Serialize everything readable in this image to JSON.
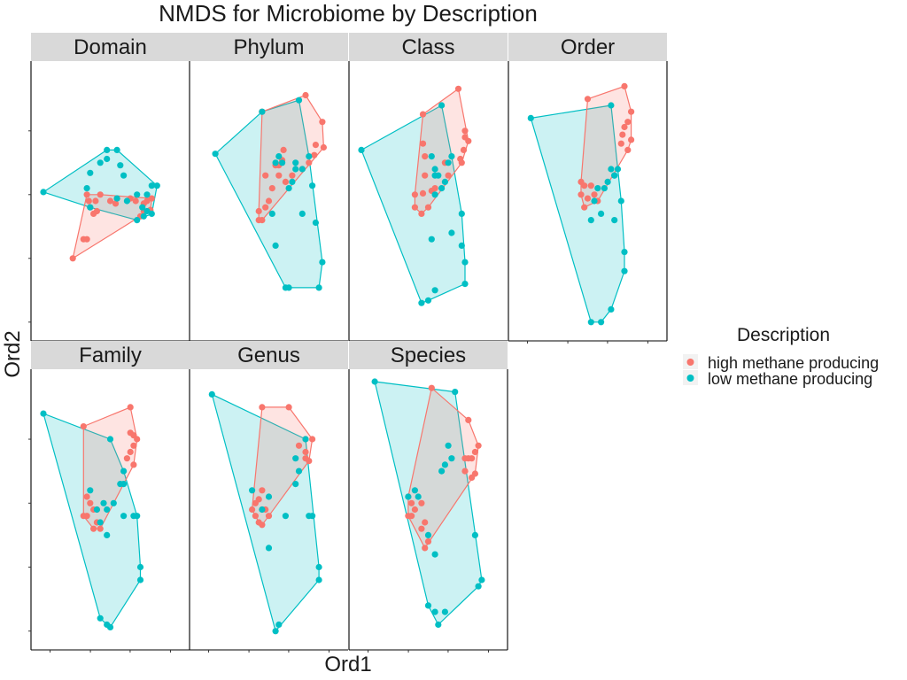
{
  "chart_data": {
    "type": "scatter",
    "title": "NMDS for Microbiome by Description",
    "xlabel": "Ord1",
    "ylabel": "Ord2",
    "legend": {
      "title": "Description",
      "position": "right",
      "entries": [
        {
          "label": "high methane producing",
          "color": "#F8766D"
        },
        {
          "label": "low methane producing",
          "color": "#00BFC4"
        }
      ]
    },
    "colors": {
      "high": "#F8766D",
      "low": "#00BFC4"
    },
    "xlim": [
      -1,
      1
    ],
    "ylim": [
      -1,
      1
    ],
    "facets": [
      {
        "name": "Domain",
        "high": [
          [
            -0.56,
            -0.45
          ],
          [
            -0.35,
            -0.3
          ],
          [
            -0.4,
            -0.3
          ],
          [
            -0.25,
            -0.1
          ],
          [
            -0.2,
            -0.08
          ],
          [
            -0.15,
            0.05
          ],
          [
            -0.35,
            0.05
          ],
          [
            -0.32,
            0.0
          ],
          [
            -0.22,
            0.0
          ],
          [
            -0.3,
            -0.05
          ],
          [
            0.0,
            0.0
          ],
          [
            0.1,
            0.02
          ],
          [
            0.3,
            0.02
          ],
          [
            0.38,
            0.0
          ],
          [
            0.5,
            -0.02
          ],
          [
            0.55,
            0.0
          ],
          [
            0.62,
            0.02
          ],
          [
            0.6,
            -0.07
          ],
          [
            0.5,
            -0.08
          ],
          [
            0.45,
            -0.12
          ],
          [
            0.08,
            -0.02
          ]
        ],
        "low": [
          [
            -1.0,
            0.07
          ],
          [
            -0.05,
            0.4
          ],
          [
            -0.05,
            0.33
          ],
          [
            -0.15,
            0.3
          ],
          [
            -0.3,
            0.22
          ],
          [
            -0.35,
            0.1
          ],
          [
            0.1,
            0.4
          ],
          [
            0.15,
            0.28
          ],
          [
            0.2,
            0.2
          ],
          [
            0.1,
            0.02
          ],
          [
            0.25,
            0.0
          ],
          [
            0.4,
            0.05
          ],
          [
            0.55,
            0.05
          ],
          [
            0.48,
            -0.05
          ],
          [
            0.5,
            -0.12
          ],
          [
            0.62,
            0.12
          ],
          [
            0.7,
            0.12
          ],
          [
            0.62,
            -0.1
          ],
          [
            0.4,
            -0.15
          ],
          [
            0.55,
            -0.08
          ],
          [
            -0.3,
            -0.05
          ]
        ]
      },
      {
        "name": "Phylum",
        "high": [
          [
            0.55,
            0.83
          ],
          [
            0.8,
            0.62
          ],
          [
            0.82,
            0.42
          ],
          [
            0.7,
            0.44
          ],
          [
            0.68,
            0.36
          ],
          [
            0.22,
            0.4
          ],
          [
            0.2,
            0.32
          ],
          [
            0.15,
            0.28
          ],
          [
            0.1,
            0.28
          ],
          [
            -0.05,
            0.2
          ],
          [
            0.05,
            0.1
          ],
          [
            0.0,
            0.0
          ],
          [
            -0.05,
            -0.05
          ],
          [
            -0.15,
            -0.08
          ],
          [
            -0.15,
            -0.15
          ],
          [
            -0.1,
            -0.15
          ],
          [
            0.5,
            0.25
          ],
          [
            0.6,
            0.3
          ],
          [
            0.35,
            0.2
          ],
          [
            0.25,
            0.15
          ],
          [
            0.15,
            0.2
          ],
          [
            -0.1,
            0.7
          ]
        ],
        "low": [
          [
            -0.8,
            0.37
          ],
          [
            -0.1,
            0.7
          ],
          [
            0.45,
            0.79
          ],
          [
            0.6,
            0.35
          ],
          [
            0.5,
            0.25
          ],
          [
            0.4,
            0.3
          ],
          [
            0.35,
            0.15
          ],
          [
            0.3,
            0.1
          ],
          [
            0.2,
            0.3
          ],
          [
            0.15,
            0.35
          ],
          [
            0.1,
            0.3
          ],
          [
            0.65,
            0.12
          ],
          [
            0.5,
            -0.1
          ],
          [
            0.7,
            -0.17
          ],
          [
            0.8,
            -0.48
          ],
          [
            0.75,
            -0.68
          ],
          [
            0.25,
            -0.68
          ],
          [
            0.3,
            -0.68
          ],
          [
            0.1,
            -0.35
          ],
          [
            0.05,
            -0.1
          ],
          [
            0.4,
            0.25
          ]
        ]
      },
      {
        "name": "Class",
        "high": [
          [
            0.45,
            0.88
          ],
          [
            0.55,
            0.55
          ],
          [
            0.6,
            0.47
          ],
          [
            0.55,
            0.5
          ],
          [
            0.53,
            0.4
          ],
          [
            0.5,
            0.3
          ],
          [
            0.48,
            0.33
          ],
          [
            -0.08,
            0.68
          ],
          [
            -0.08,
            0.45
          ],
          [
            -0.05,
            0.35
          ],
          [
            -0.05,
            0.2
          ],
          [
            0.1,
            0.1
          ],
          [
            0.05,
            0.08
          ],
          [
            -0.08,
            0.06
          ],
          [
            -0.2,
            0.05
          ],
          [
            -0.2,
            -0.05
          ],
          [
            -0.1,
            -0.1
          ],
          [
            0.0,
            -0.05
          ],
          [
            0.3,
            0.2
          ],
          [
            0.25,
            0.3
          ]
        ],
        "low": [
          [
            -1.0,
            0.4
          ],
          [
            0.2,
            0.75
          ],
          [
            0.35,
            0.35
          ],
          [
            0.3,
            0.3
          ],
          [
            0.25,
            0.15
          ],
          [
            0.2,
            0.1
          ],
          [
            0.1,
            0.2
          ],
          [
            0.05,
            0.35
          ],
          [
            0.15,
            0.2
          ],
          [
            0.1,
            0.25
          ],
          [
            0.5,
            -0.1
          ],
          [
            0.35,
            -0.25
          ],
          [
            0.5,
            -0.35
          ],
          [
            0.55,
            -0.48
          ],
          [
            0.55,
            -0.65
          ],
          [
            0.1,
            -0.7
          ],
          [
            0.0,
            -0.78
          ],
          [
            -0.1,
            -0.8
          ],
          [
            0.05,
            -0.3
          ],
          [
            0.1,
            0.05
          ]
        ]
      },
      {
        "name": "Order",
        "high": [
          [
            0.55,
            0.9
          ],
          [
            0.65,
            0.7
          ],
          [
            0.6,
            0.62
          ],
          [
            0.55,
            0.58
          ],
          [
            0.52,
            0.52
          ],
          [
            0.5,
            0.45
          ],
          [
            0.65,
            0.48
          ],
          [
            0.6,
            0.4
          ],
          [
            0.0,
            0.8
          ],
          [
            -0.1,
            0.15
          ],
          [
            -0.05,
            0.12
          ],
          [
            0.05,
            0.12
          ],
          [
            -0.1,
            0.05
          ],
          [
            0.0,
            0.02
          ],
          [
            0.1,
            0.05
          ],
          [
            -0.05,
            -0.05
          ],
          [
            0.15,
            0.0
          ]
        ],
        "low": [
          [
            -0.85,
            0.65
          ],
          [
            0.35,
            0.75
          ],
          [
            0.4,
            0.2
          ],
          [
            0.35,
            0.25
          ],
          [
            0.3,
            0.15
          ],
          [
            0.25,
            0.1
          ],
          [
            0.15,
            0.1
          ],
          [
            0.1,
            0.0
          ],
          [
            0.2,
            -0.1
          ],
          [
            0.4,
            -0.15
          ],
          [
            0.5,
            0.0
          ],
          [
            0.55,
            -0.4
          ],
          [
            0.55,
            -0.55
          ],
          [
            0.35,
            -0.85
          ],
          [
            0.2,
            -0.95
          ],
          [
            0.05,
            -0.95
          ],
          [
            0.05,
            -0.15
          ],
          [
            0.4,
            0.2
          ],
          [
            0.45,
            0.25
          ]
        ]
      },
      {
        "name": "Family",
        "high": [
          [
            0.3,
            0.8
          ],
          [
            -0.4,
            0.65
          ],
          [
            0.3,
            0.6
          ],
          [
            0.35,
            0.58
          ],
          [
            0.4,
            0.55
          ],
          [
            0.35,
            0.5
          ],
          [
            0.3,
            0.45
          ],
          [
            0.25,
            0.4
          ],
          [
            0.35,
            0.35
          ],
          [
            -0.35,
            0.1
          ],
          [
            -0.3,
            0.05
          ],
          [
            -0.25,
            0.0
          ],
          [
            -0.4,
            -0.05
          ],
          [
            -0.35,
            -0.05
          ],
          [
            -0.2,
            -0.1
          ],
          [
            -0.25,
            -0.15
          ],
          [
            -0.15,
            -0.15
          ],
          [
            -0.2,
            0.0
          ]
        ],
        "low": [
          [
            -1.0,
            0.75
          ],
          [
            0.0,
            0.55
          ],
          [
            0.2,
            0.3
          ],
          [
            0.15,
            0.2
          ],
          [
            0.2,
            0.2
          ],
          [
            0.05,
            0.05
          ],
          [
            -0.05,
            0.0
          ],
          [
            -0.1,
            0.05
          ],
          [
            -0.15,
            -0.1
          ],
          [
            -0.05,
            -0.2
          ],
          [
            0.2,
            -0.05
          ],
          [
            0.35,
            -0.05
          ],
          [
            0.4,
            -0.05
          ],
          [
            0.45,
            -0.45
          ],
          [
            0.45,
            -0.55
          ],
          [
            -0.05,
            -0.9
          ],
          [
            0.0,
            -0.92
          ],
          [
            -0.15,
            -0.85
          ],
          [
            -0.2,
            0.0
          ],
          [
            -0.3,
            0.15
          ]
        ]
      },
      {
        "name": "Genus",
        "high": [
          [
            0.3,
            0.8
          ],
          [
            -0.1,
            0.8
          ],
          [
            0.55,
            0.55
          ],
          [
            0.65,
            0.55
          ],
          [
            0.55,
            0.45
          ],
          [
            0.55,
            0.4
          ],
          [
            0.6,
            0.38
          ],
          [
            0.45,
            0.5
          ],
          [
            -0.1,
            0.15
          ],
          [
            -0.15,
            0.08
          ],
          [
            -0.2,
            0.05
          ],
          [
            -0.25,
            0.0
          ],
          [
            -0.1,
            0.0
          ],
          [
            -0.05,
            0.0
          ],
          [
            -0.2,
            -0.05
          ],
          [
            -0.15,
            -0.1
          ],
          [
            -0.1,
            -0.12
          ],
          [
            0.0,
            -0.05
          ]
        ],
        "low": [
          [
            -0.85,
            0.9
          ],
          [
            0.55,
            0.55
          ],
          [
            0.4,
            0.4
          ],
          [
            0.45,
            0.3
          ],
          [
            0.4,
            0.2
          ],
          [
            0.0,
            0.1
          ],
          [
            -0.1,
            0.0
          ],
          [
            0.25,
            -0.05
          ],
          [
            0.6,
            -0.05
          ],
          [
            0.65,
            -0.05
          ],
          [
            0.75,
            -0.45
          ],
          [
            0.75,
            -0.55
          ],
          [
            0.15,
            -0.9
          ],
          [
            0.1,
            -0.95
          ],
          [
            0.0,
            -0.3
          ],
          [
            -0.25,
            0.15
          ]
        ]
      },
      {
        "name": "Species",
        "high": [
          [
            0.05,
            0.95
          ],
          [
            0.6,
            0.7
          ],
          [
            0.75,
            0.5
          ],
          [
            0.7,
            0.45
          ],
          [
            0.65,
            0.4
          ],
          [
            0.6,
            0.4
          ],
          [
            0.55,
            0.4
          ],
          [
            0.55,
            0.3
          ],
          [
            0.65,
            0.25
          ],
          [
            0.7,
            0.28
          ],
          [
            -0.3,
            0.1
          ],
          [
            -0.25,
            0.05
          ],
          [
            -0.2,
            0.0
          ],
          [
            -0.25,
            -0.05
          ],
          [
            -0.3,
            -0.05
          ],
          [
            -0.05,
            -0.1
          ],
          [
            -0.1,
            -0.15
          ],
          [
            0.0,
            -0.25
          ],
          [
            -0.05,
            -0.3
          ],
          [
            -0.1,
            0.05
          ]
        ],
        "low": [
          [
            -0.8,
            1.0
          ],
          [
            0.4,
            0.92
          ],
          [
            0.3,
            0.5
          ],
          [
            0.35,
            0.4
          ],
          [
            0.25,
            0.35
          ],
          [
            0.2,
            0.3
          ],
          [
            -0.15,
            0.1
          ],
          [
            -0.2,
            0.15
          ],
          [
            -0.3,
            0.1
          ],
          [
            0.0,
            -0.2
          ],
          [
            0.1,
            -0.35
          ],
          [
            0.7,
            -0.2
          ],
          [
            0.8,
            -0.55
          ],
          [
            0.75,
            -0.6
          ],
          [
            0.25,
            -0.8
          ],
          [
            0.1,
            -0.8
          ],
          [
            0.15,
            -0.9
          ],
          [
            0.0,
            -0.75
          ]
        ]
      }
    ]
  }
}
